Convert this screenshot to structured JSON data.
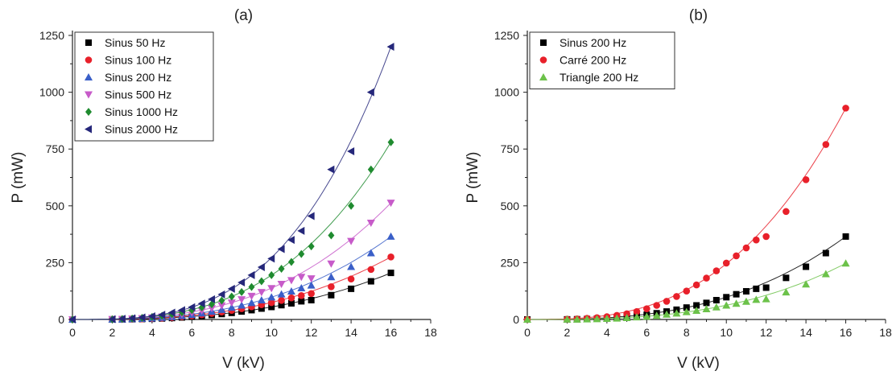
{
  "chart_data": [
    {
      "type": "scatter",
      "panel_label": "(a)",
      "xlabel": "V (kV)",
      "ylabel": "P (mW)",
      "xlim": [
        0,
        18
      ],
      "ylim": [
        0,
        1250
      ],
      "xticks": [
        0,
        2,
        4,
        6,
        8,
        10,
        12,
        14,
        16,
        18
      ],
      "yticks": [
        0,
        250,
        500,
        750,
        1000,
        1250
      ],
      "legend_position": "top-left",
      "fit_curves": true,
      "series": [
        {
          "name": "Sinus 50 Hz",
          "marker": "square",
          "color": "#000000",
          "x": [
            0,
            2,
            2.5,
            3,
            3.5,
            4,
            4.5,
            5,
            5.5,
            6,
            6.5,
            7,
            7.5,
            8,
            8.5,
            9,
            9.5,
            10,
            10.5,
            11,
            11.5,
            12,
            13,
            14,
            15,
            16
          ],
          "y": [
            0,
            0.3,
            0.6,
            1.2,
            2,
            3,
            4.5,
            6.5,
            9,
            12,
            15.5,
            19.5,
            24,
            29,
            35,
            41,
            48,
            55,
            63,
            71,
            80,
            85,
            107,
            135,
            168,
            205
          ]
        },
        {
          "name": "Sinus 100 Hz",
          "marker": "circle",
          "color": "#e8202a",
          "x": [
            0,
            2,
            2.5,
            3,
            3.5,
            4,
            4.5,
            5,
            5.5,
            6,
            6.5,
            7,
            7.5,
            8,
            8.5,
            9,
            9.5,
            10,
            10.5,
            11,
            11.5,
            12,
            13,
            14,
            15,
            16
          ],
          "y": [
            0,
            0.4,
            0.8,
            1.5,
            2.5,
            4,
            6,
            8.5,
            12,
            16,
            21,
            26.5,
            33,
            40,
            47.5,
            56,
            65,
            74,
            84,
            95,
            105,
            114,
            144,
            178,
            220,
            275
          ]
        },
        {
          "name": "Sinus 200 Hz",
          "marker": "triangle-up",
          "color": "#3a5fc8",
          "x": [
            0,
            2,
            2.5,
            3,
            3.5,
            4,
            4.5,
            5,
            5.5,
            6,
            6.5,
            7,
            7.5,
            8,
            8.5,
            9,
            9.5,
            10,
            10.5,
            11,
            11.5,
            12,
            13,
            14,
            15,
            16
          ],
          "y": [
            0,
            0.5,
            1,
            2,
            3.5,
            5.5,
            8,
            11.5,
            16,
            21,
            27.5,
            35,
            43,
            52.5,
            62,
            73,
            85,
            98,
            111,
            124,
            138,
            150,
            187,
            232,
            292,
            365
          ]
        },
        {
          "name": "Sinus 500 Hz",
          "marker": "triangle-down",
          "color": "#c75bc9",
          "x": [
            0,
            2,
            2.5,
            3,
            3.5,
            4,
            4.5,
            5,
            5.5,
            6,
            6.5,
            7,
            7.5,
            8,
            8.5,
            9,
            9.5,
            10,
            10.5,
            11,
            11.5,
            12,
            13,
            14,
            15,
            16
          ],
          "y": [
            0,
            0.7,
            1.5,
            3,
            5,
            8,
            12,
            17,
            23,
            30,
            39,
            49,
            61,
            74,
            88,
            103,
            120,
            137,
            156,
            172,
            187,
            180,
            245,
            345,
            425,
            513
          ]
        },
        {
          "name": "Sinus 1000 Hz",
          "marker": "diamond",
          "color": "#1f8b2f",
          "x": [
            0,
            2,
            2.5,
            3,
            3.5,
            4,
            4.5,
            5,
            5.5,
            6,
            6.5,
            7,
            7.5,
            8,
            8.5,
            9,
            9.5,
            10,
            10.5,
            11,
            11.5,
            12,
            13,
            14,
            15,
            16
          ],
          "y": [
            0,
            1,
            2,
            4,
            7,
            11,
            16,
            23,
            31,
            41,
            53,
            67,
            83,
            101,
            121,
            143,
            168,
            195,
            223,
            253,
            288,
            322,
            370,
            500,
            660,
            780
          ]
        },
        {
          "name": "Sinus 2000 Hz",
          "marker": "triangle-left",
          "color": "#25277a",
          "x": [
            0,
            2,
            2.5,
            3,
            3.5,
            4,
            4.5,
            5,
            5.5,
            6,
            6.5,
            7,
            7.5,
            8,
            8.5,
            9,
            9.5,
            10,
            10.5,
            11,
            11.5,
            12,
            13,
            14,
            15,
            16
          ],
          "y": [
            0,
            1.5,
            3,
            5.5,
            9,
            14,
            21,
            30,
            41,
            54,
            70,
            89,
            110,
            135,
            163,
            195,
            230,
            268,
            310,
            350,
            390,
            455,
            660,
            740,
            1000,
            1200
          ]
        }
      ]
    },
    {
      "type": "scatter",
      "panel_label": "(b)",
      "xlabel": "V (kV)",
      "ylabel": "P (mW)",
      "xlim": [
        0,
        18
      ],
      "ylim": [
        0,
        1250
      ],
      "xticks": [
        0,
        2,
        4,
        6,
        8,
        10,
        12,
        14,
        16,
        18
      ],
      "yticks": [
        0,
        250,
        500,
        750,
        1000,
        1250
      ],
      "legend_position": "top-left",
      "fit_curves": true,
      "series": [
        {
          "name": "Sinus 200 Hz",
          "marker": "square",
          "color": "#000000",
          "x": [
            0,
            2,
            2.5,
            3,
            3.5,
            4,
            4.5,
            5,
            5.5,
            6,
            6.5,
            7,
            7.5,
            8,
            8.5,
            9,
            9.5,
            10,
            10.5,
            11,
            11.5,
            12,
            13,
            14,
            15,
            16
          ],
          "y": [
            0,
            0.5,
            1,
            2,
            3.5,
            5.5,
            8,
            11.5,
            16,
            21,
            27.5,
            35,
            43,
            52.5,
            62,
            73,
            85,
            98,
            111,
            124,
            135,
            140,
            183,
            232,
            292,
            365
          ]
        },
        {
          "name": "Carré 200 Hz",
          "marker": "circle",
          "color": "#e8202a",
          "x": [
            0,
            2,
            2.5,
            3,
            3.5,
            4,
            4.5,
            5,
            5.5,
            6,
            6.5,
            7,
            7.5,
            8,
            8.5,
            9,
            9.5,
            10,
            10.5,
            11,
            11.5,
            12,
            13,
            14,
            15,
            16
          ],
          "y": [
            0,
            1,
            2.5,
            5,
            8,
            12,
            18,
            25,
            35,
            47,
            62,
            80,
            101,
            125,
            152,
            182,
            214,
            248,
            280,
            315,
            350,
            365,
            475,
            615,
            770,
            930
          ]
        },
        {
          "name": "Triangle 200 Hz",
          "marker": "triangle-up",
          "color": "#6cc24a",
          "x": [
            0,
            2,
            2.5,
            3,
            3.5,
            4,
            4.5,
            5,
            5.5,
            6,
            6.5,
            7,
            7.5,
            8,
            8.5,
            9,
            9.5,
            10,
            10.5,
            11,
            11.5,
            12,
            13,
            14,
            15,
            16
          ],
          "y": [
            0,
            0.3,
            0.6,
            1.2,
            2,
            3.5,
            5,
            7,
            10,
            13,
            17,
            22,
            27,
            33,
            39,
            46,
            54,
            62,
            70,
            79,
            87,
            90,
            120,
            155,
            200,
            247
          ]
        }
      ]
    }
  ]
}
